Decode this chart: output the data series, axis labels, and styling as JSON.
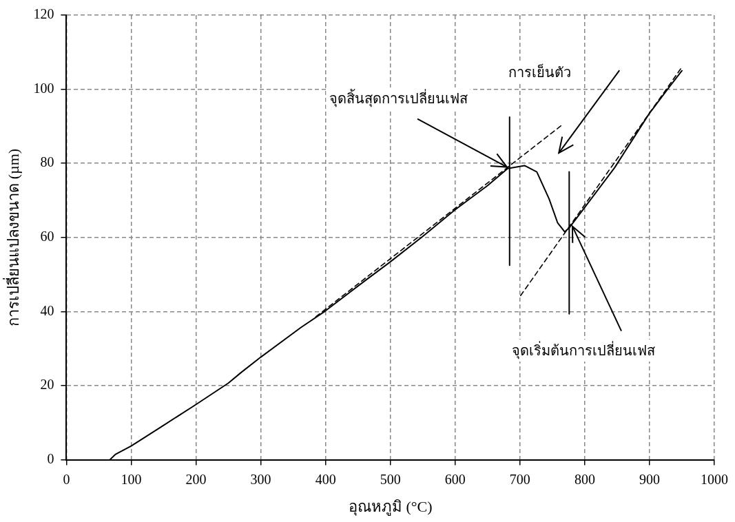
{
  "chart_data": {
    "type": "line",
    "xlabel": "อุณหภูมิ (°C)",
    "ylabel": "การเปลี่ยนแปลงขนาด (µm)",
    "xlim": [
      0,
      1000
    ],
    "xticks": [
      0,
      100,
      200,
      300,
      400,
      500,
      600,
      700,
      800,
      900,
      1000
    ],
    "ylim": [
      0,
      120
    ],
    "yticks": [
      0,
      20,
      40,
      60,
      80,
      100,
      120
    ],
    "grid": true,
    "legend": false,
    "marker": "none",
    "series": [
      {
        "type": "line",
        "color": "#000000",
        "line_style": "solid",
        "x": [
          67,
          76,
          100,
          150,
          199,
          250,
          270,
          300,
          362,
          400,
          463,
          499,
          550,
          600,
          650,
          681,
          707,
          726,
          745,
          758,
          769,
          776,
          799,
          846,
          899,
          930,
          950
        ],
        "values": [
          0,
          1.5,
          3.7,
          9.3,
          14.8,
          20.7,
          23.6,
          27.7,
          35.7,
          40.2,
          48.6,
          53.3,
          60.3,
          67.5,
          74,
          78.6,
          79.4,
          77.7,
          70.4,
          64,
          61.5,
          62.6,
          67.9,
          78.8,
          93.3,
          100.5,
          105
        ]
      },
      {
        "type": "line",
        "color": "#000000",
        "line_style": "dashed",
        "x": [
          385,
          766
        ],
        "values": [
          38.6,
          90.5
        ]
      },
      {
        "type": "line",
        "color": "#000000",
        "line_style": "dashed",
        "x": [
          701,
          950
        ],
        "values": [
          44.3,
          106
        ]
      },
      {
        "type": "line",
        "color": "#000000",
        "line_style": "solid",
        "x": [
          684,
          684
        ],
        "values": [
          52.5,
          92.5
        ]
      },
      {
        "type": "line",
        "color": "#000000",
        "line_style": "solid",
        "x": [
          776,
          776
        ],
        "values": [
          39.4,
          77.7
        ]
      }
    ],
    "annotations": [
      {
        "text": "จุดสิ้นสุดการเปลี่ยนเฟส",
        "x": 680,
        "y": 79
      },
      "การเย็นตัว",
      {
        "text": "จุดเริ่มต้นการเปลี่ยนเฟส",
        "x": 781,
        "y": 63
      }
    ]
  }
}
